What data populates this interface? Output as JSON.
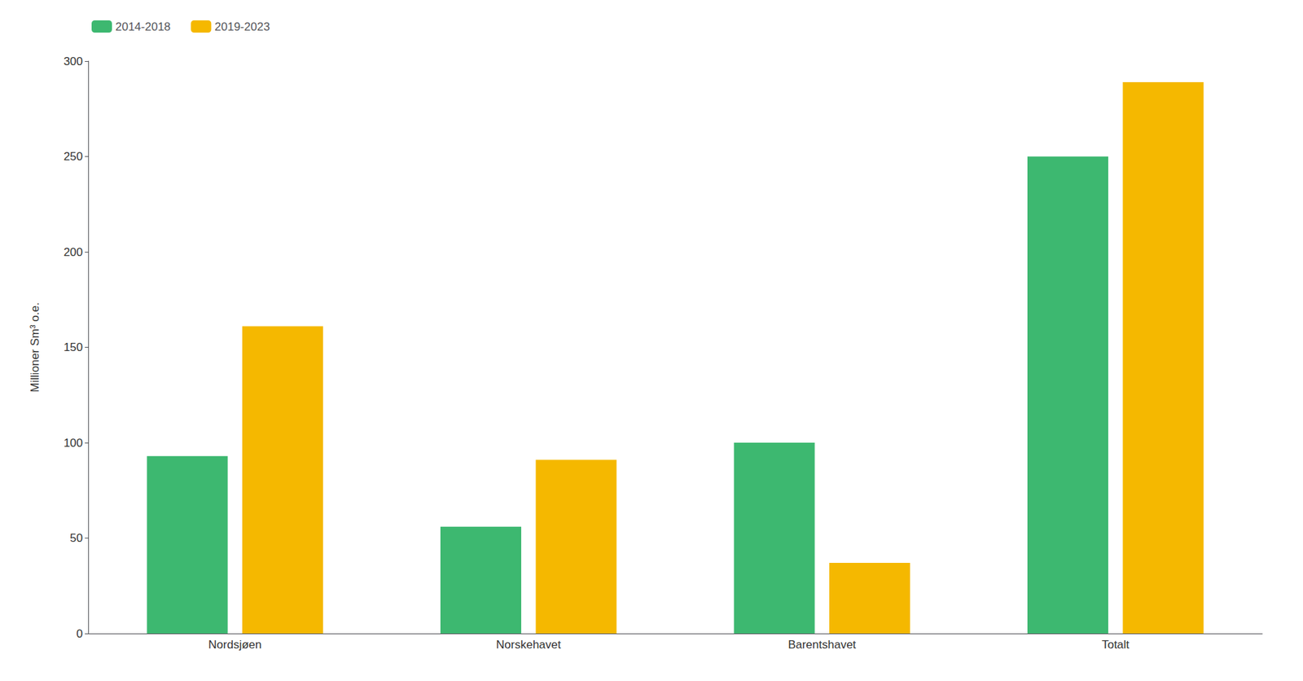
{
  "chart_data": {
    "type": "bar",
    "categories": [
      "Nordsjøen",
      "Norskehavet",
      "Barentshavet",
      "Totalt"
    ],
    "series": [
      {
        "name": "2014-2018",
        "color": "#3db870",
        "values": [
          93,
          56,
          100,
          250
        ]
      },
      {
        "name": "2019-2023",
        "color": "#f5b800",
        "values": [
          161,
          91,
          37,
          289
        ]
      }
    ],
    "ylabel": "Millioner Sm³ o.e.",
    "ylim": [
      0,
      300
    ],
    "yticks": [
      0,
      50,
      100,
      150,
      200,
      250,
      300
    ],
    "grid": false,
    "legend": "upper left"
  }
}
